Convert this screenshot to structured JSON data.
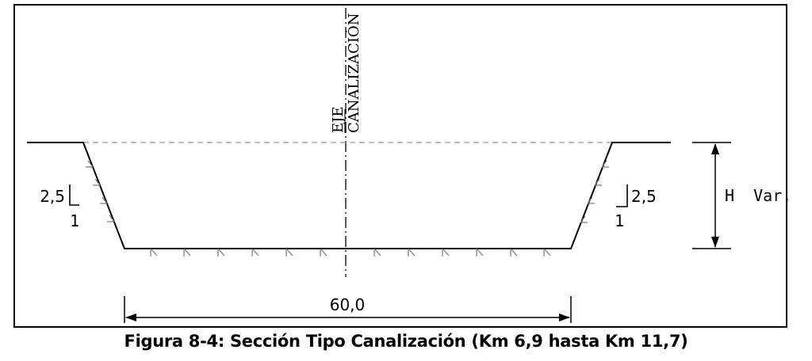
{
  "diagram": {
    "axis_label_top": "EJE",
    "axis_label_bottom": "CANALIZACIÓN",
    "slope_left": {
      "rise": "2,5",
      "run": "1"
    },
    "slope_right": {
      "rise": "2,5",
      "run": "1"
    },
    "height_label": "H  Var.",
    "width_label": "60,0"
  },
  "caption": "Figura 8-4: Sección Tipo Canalización (Km 6,9 hasta Km 11,7)"
}
